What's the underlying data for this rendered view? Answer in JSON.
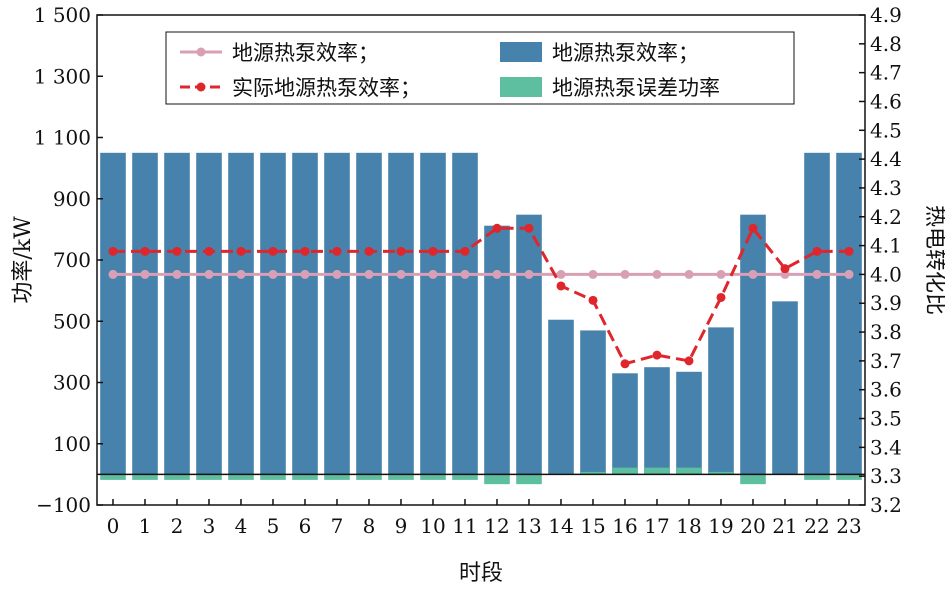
{
  "chart_data": {
    "type": "bar",
    "title": "",
    "xlabel": "时段",
    "ylabel_left": "功率/kW",
    "ylabel_right": "热电转化比",
    "x": [
      "0",
      "1",
      "2",
      "3",
      "4",
      "5",
      "6",
      "7",
      "8",
      "9",
      "10",
      "11",
      "12",
      "13",
      "14",
      "15",
      "16",
      "17",
      "18",
      "19",
      "20",
      "21",
      "22",
      "23"
    ],
    "ylim_left": [
      -100,
      1500
    ],
    "ylim_right": [
      3.2,
      4.9
    ],
    "yticks_left": [
      "−100",
      "100",
      "300",
      "500",
      "700",
      "900",
      "1 100",
      "1 300",
      "1 500"
    ],
    "yticks_right": [
      "3.2",
      "3.3",
      "3.4",
      "3.5",
      "3.6",
      "3.7",
      "3.8",
      "3.9",
      "4.0",
      "4.1",
      "4.2",
      "4.3",
      "4.4",
      "4.5",
      "4.6",
      "4.7",
      "4.8",
      "4.9"
    ],
    "grid": false,
    "legend_position": "top",
    "series": [
      {
        "name": "地源热泵效率；",
        "type": "bar",
        "axis": "left",
        "color": "#4682ab",
        "values": [
          1050,
          1050,
          1050,
          1050,
          1050,
          1050,
          1050,
          1050,
          1050,
          1050,
          1050,
          1050,
          812,
          848,
          505,
          470,
          330,
          350,
          335,
          480,
          848,
          565,
          1050,
          1050
        ]
      },
      {
        "name": "地源热泵误差功率",
        "type": "bar",
        "axis": "left",
        "color": "#5dbf9f",
        "values": [
          -18,
          -18,
          -18,
          -18,
          -18,
          -18,
          -18,
          -18,
          -18,
          -18,
          -18,
          -18,
          -32,
          -32,
          3,
          8,
          22,
          22,
          22,
          8,
          -32,
          0,
          -18,
          -18
        ]
      },
      {
        "name": "地源热泵效率；",
        "type": "line",
        "axis": "right",
        "color": "#d9a0b5",
        "values": [
          4.0,
          4.0,
          4.0,
          4.0,
          4.0,
          4.0,
          4.0,
          4.0,
          4.0,
          4.0,
          4.0,
          4.0,
          4.0,
          4.0,
          4.0,
          4.0,
          4.0,
          4.0,
          4.0,
          4.0,
          4.0,
          4.0,
          4.0,
          4.0
        ]
      },
      {
        "name": "实际地源热泵效率；",
        "type": "line",
        "axis": "right",
        "color": "#e0262d",
        "dashed": true,
        "values": [
          4.08,
          4.08,
          4.08,
          4.08,
          4.08,
          4.08,
          4.08,
          4.08,
          4.08,
          4.08,
          4.08,
          4.08,
          4.16,
          4.16,
          3.96,
          3.91,
          3.69,
          3.72,
          3.7,
          3.92,
          4.16,
          4.02,
          4.08,
          4.08
        ]
      }
    ]
  }
}
